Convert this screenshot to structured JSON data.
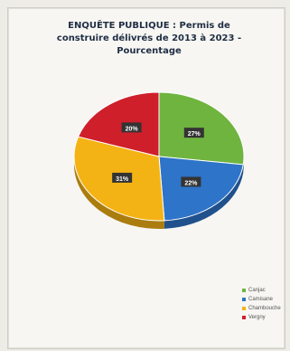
{
  "chart_data": {
    "type": "pie",
    "title_lines": [
      "ENQUÊTE PUBLIQUE : Permis de",
      "construire délivrés de 2013 à 2023 -",
      "Pourcentage"
    ],
    "slices": [
      {
        "name": "Canjac",
        "value": 27,
        "label": "27%",
        "color": "#6fb43f"
      },
      {
        "name": "Camisane",
        "value": 22,
        "label": "22%",
        "color": "#2e74c8"
      },
      {
        "name": "Chambouche",
        "value": 31,
        "label": "31%",
        "color": "#f4b315"
      },
      {
        "name": "Vergny",
        "value": 20,
        "label": "20%",
        "color": "#cf1f2b"
      }
    ],
    "legend_position": "bottom-right"
  }
}
